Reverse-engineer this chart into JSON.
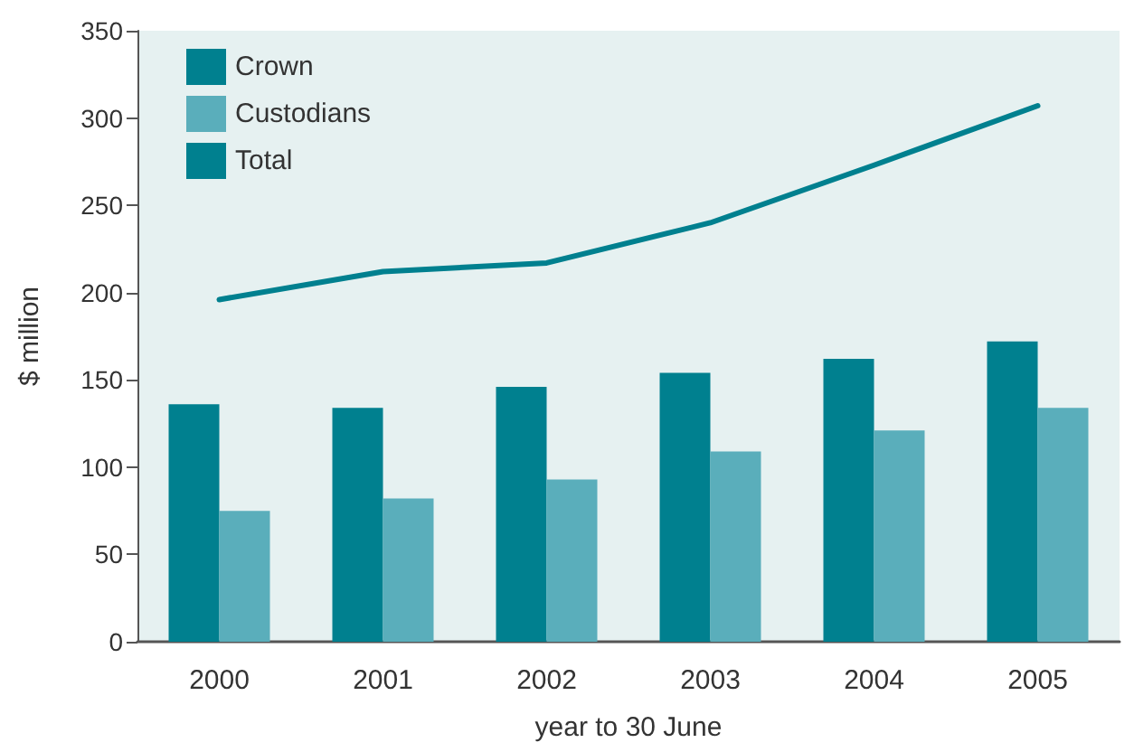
{
  "chart_data": {
    "type": "bar",
    "xlabel": "year to 30 June",
    "ylabel": "$ million",
    "categories": [
      "2000",
      "2001",
      "2002",
      "2003",
      "2004",
      "2005"
    ],
    "series": [
      {
        "name": "Crown",
        "color": "#00808f",
        "values": [
          136,
          134,
          146,
          154,
          162,
          172
        ]
      },
      {
        "name": "Custodians",
        "color": "#5aaebb",
        "values": [
          75,
          82,
          93,
          109,
          121,
          134
        ]
      },
      {
        "name": "Total",
        "type": "line",
        "color": "#00808f",
        "values": [
          196,
          212,
          217,
          240,
          273,
          307
        ]
      }
    ],
    "ylim": [
      0,
      350
    ],
    "yticks": [
      0,
      50,
      100,
      150,
      200,
      250,
      300,
      350
    ],
    "grid": false,
    "legend": "top left",
    "marker": "none"
  }
}
